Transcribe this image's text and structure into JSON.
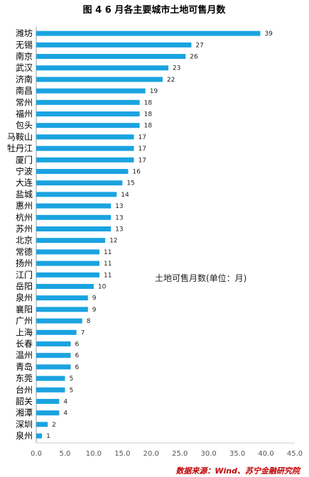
{
  "chart_data": {
    "type": "bar",
    "orientation": "horizontal",
    "title": "图 4   6 月各主要城市土地可售月数",
    "categories": [
      "潍坊",
      "无锡",
      "南京",
      "武汉",
      "济南",
      "南昌",
      "常州",
      "福州",
      "包头",
      "马鞍山",
      "牡丹江",
      "厦门",
      "宁波",
      "大连",
      "盐城",
      "惠州",
      "杭州",
      "苏州",
      "北京",
      "常德",
      "扬州",
      "江门",
      "岳阳",
      "泉州",
      "襄阳",
      "广州",
      "上海",
      "长春",
      "温州",
      "青岛",
      "东莞",
      "台州",
      "韶关",
      "湘潭",
      "深圳",
      "泉州"
    ],
    "values": [
      39,
      27,
      26,
      23,
      22,
      19,
      18,
      18,
      18,
      17,
      17,
      17,
      16,
      15,
      14,
      13,
      13,
      13,
      12,
      11,
      11,
      11,
      10,
      9,
      9,
      8,
      7,
      6,
      6,
      6,
      5,
      5,
      4,
      4,
      2,
      1
    ],
    "xlim": [
      0,
      45
    ],
    "xticks": [
      "0.0",
      "5.0",
      "10.0",
      "15.0",
      "20.0",
      "25.0",
      "30.0",
      "35.0",
      "40.0",
      "45.0"
    ],
    "annotation": "土地可售月数(单位：月)",
    "bar_color": "#1aa3e0",
    "grid": false
  },
  "source": "数据来源：Wind、苏宁金融研究院"
}
